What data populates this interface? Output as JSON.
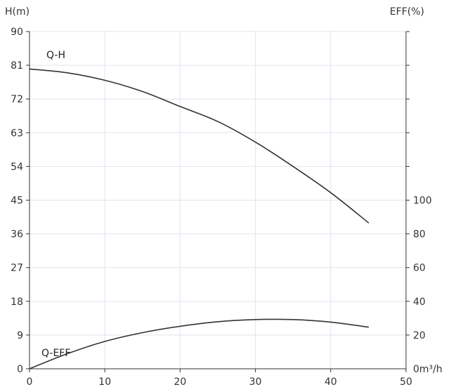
{
  "chart_data": {
    "type": "line",
    "xlabel": "m³/h",
    "ylabel": "H(m)",
    "y2label": "EFF(%)",
    "xlim": [
      0,
      50
    ],
    "ylim": [
      0,
      90
    ],
    "y2lim": [
      0,
      100
    ],
    "x_ticks": [
      "0",
      "10",
      "20",
      "30",
      "40",
      "50"
    ],
    "y_ticks": [
      "0",
      "9",
      "18",
      "27",
      "36",
      "45",
      "54",
      "63",
      "72",
      "81",
      "90"
    ],
    "y2_ticks": [
      "0",
      "20",
      "40",
      "60",
      "80",
      "100"
    ],
    "y2_tick_values": [
      0,
      20,
      40,
      60,
      80,
      100
    ],
    "grid": true,
    "series": [
      {
        "name": "Q-H",
        "axis": "left",
        "x": [
          0,
          5,
          10,
          15,
          20,
          25,
          30,
          35,
          40,
          45
        ],
        "y": [
          80,
          79,
          77,
          74,
          70,
          66,
          60.5,
          54,
          47,
          39
        ]
      },
      {
        "name": "Q-EFF",
        "axis": "right",
        "x": [
          0,
          5,
          10,
          15,
          20,
          25,
          30,
          35,
          40,
          45
        ],
        "y": [
          0,
          8.9,
          16.2,
          21.4,
          25.2,
          27.9,
          29.2,
          29.2,
          27.7,
          24.7
        ]
      }
    ]
  }
}
